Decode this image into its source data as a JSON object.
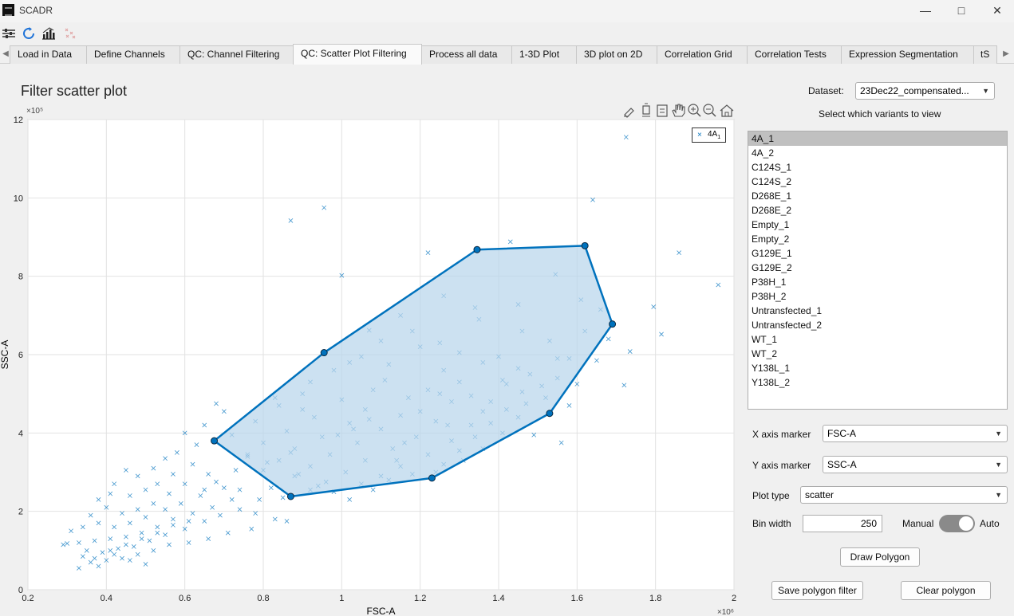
{
  "window": {
    "title": "SCADR",
    "minimize_icon": "minimize-icon",
    "maximize_icon": "maximize-icon",
    "close_icon": "close-icon"
  },
  "toolbar": {
    "icons": [
      "settings-sliders-icon",
      "refresh-icon",
      "bar-chart-icon",
      "scatter-icon"
    ]
  },
  "tabs": [
    {
      "label": "Load in Data"
    },
    {
      "label": "Define Channels"
    },
    {
      "label": "QC: Channel Filtering"
    },
    {
      "label": "QC: Scatter Plot Filtering",
      "active": true
    },
    {
      "label": "Process all data"
    },
    {
      "label": "1-3D Plot"
    },
    {
      "label": "3D plot on 2D"
    },
    {
      "label": "Correlation Grid"
    },
    {
      "label": "Correlation Tests"
    },
    {
      "label": "Expression Segmentation"
    },
    {
      "label": "tS"
    }
  ],
  "plot": {
    "title": "Filter scatter plot",
    "tool_icons": [
      "brush-icon",
      "data-tip-icon",
      "legend-icon",
      "pan-hand-icon",
      "zoom-in-icon",
      "zoom-out-icon",
      "home-icon"
    ]
  },
  "chart_data": {
    "type": "scatter",
    "xlabel": "FSC-A",
    "ylabel": "SSC-A",
    "x_exponent": "×10⁶",
    "y_exponent": "×10⁵",
    "xlim": [
      0.2,
      2.0
    ],
    "ylim": [
      0,
      12
    ],
    "xticks": [
      "0.2",
      "0.4",
      "0.6",
      "0.8",
      "1",
      "1.2",
      "1.4",
      "1.6",
      "1.8",
      "2"
    ],
    "yticks": [
      "0",
      "2",
      "4",
      "6",
      "8",
      "10",
      "12"
    ],
    "grid": true,
    "legend": {
      "position": "top-right",
      "label": "4A",
      "label_subscript": "1"
    },
    "marker_color": "#0072bd",
    "polygon": {
      "edge_color": "#0072bd",
      "fill_color": "#b8d6ec",
      "vertices": [
        [
          0.675,
          3.8
        ],
        [
          0.955,
          6.05
        ],
        [
          1.345,
          8.68
        ],
        [
          1.62,
          8.78
        ],
        [
          1.69,
          6.78
        ],
        [
          1.53,
          4.5
        ],
        [
          1.23,
          2.85
        ],
        [
          0.87,
          2.38
        ]
      ]
    },
    "series": [
      {
        "points": [
          [
            1.725,
            11.55
          ],
          [
            0.87,
            9.42
          ],
          [
            0.955,
            9.75
          ],
          [
            1.64,
            9.95
          ],
          [
            1.86,
            8.6
          ],
          [
            1.96,
            7.78
          ],
          [
            1.22,
            8.6
          ],
          [
            1.43,
            8.88
          ],
          [
            1.0,
            8.02
          ],
          [
            1.545,
            8.05
          ],
          [
            1.815,
            6.52
          ],
          [
            1.795,
            7.22
          ],
          [
            1.735,
            6.08
          ],
          [
            1.72,
            5.22
          ],
          [
            1.55,
            5.9
          ],
          [
            1.56,
            3.75
          ],
          [
            1.61,
            7.4
          ],
          [
            1.34,
            7.2
          ],
          [
            1.45,
            7.28
          ],
          [
            1.15,
            7.0
          ],
          [
            1.26,
            7.5
          ],
          [
            1.1,
            6.35
          ],
          [
            1.07,
            6.62
          ],
          [
            1.02,
            5.8
          ],
          [
            1.2,
            6.2
          ],
          [
            1.3,
            6.05
          ],
          [
            1.4,
            5.95
          ],
          [
            1.48,
            5.5
          ],
          [
            1.55,
            5.4
          ],
          [
            1.62,
            6.6
          ],
          [
            1.65,
            5.85
          ],
          [
            1.35,
            6.9
          ],
          [
            1.18,
            6.6
          ],
          [
            1.25,
            6.3
          ],
          [
            1.36,
            5.8
          ],
          [
            1.46,
            6.6
          ],
          [
            1.6,
            5.25
          ],
          [
            1.05,
            5.95
          ],
          [
            1.12,
            5.75
          ],
          [
            1.26,
            5.6
          ],
          [
            1.42,
            5.25
          ],
          [
            1.51,
            5.2
          ],
          [
            1.58,
            5.9
          ],
          [
            1.11,
            5.35
          ],
          [
            1.22,
            5.1
          ],
          [
            1.3,
            5.3
          ],
          [
            1.38,
            4.8
          ],
          [
            1.47,
            4.75
          ],
          [
            0.98,
            5.6
          ],
          [
            0.92,
            5.3
          ],
          [
            1.08,
            5.1
          ],
          [
            1.17,
            4.9
          ],
          [
            1.28,
            4.8
          ],
          [
            1.36,
            4.55
          ],
          [
            1.45,
            4.4
          ],
          [
            1.52,
            4.9
          ],
          [
            0.9,
            5.0
          ],
          [
            1.0,
            4.85
          ],
          [
            1.06,
            4.6
          ],
          [
            1.15,
            4.45
          ],
          [
            1.24,
            4.3
          ],
          [
            1.33,
            4.2
          ],
          [
            1.41,
            4.0
          ],
          [
            0.84,
            4.7
          ],
          [
            0.93,
            4.4
          ],
          [
            1.02,
            4.25
          ],
          [
            1.1,
            4.1
          ],
          [
            1.19,
            3.9
          ],
          [
            1.28,
            3.8
          ],
          [
            1.36,
            3.6
          ],
          [
            0.78,
            4.3
          ],
          [
            0.86,
            4.05
          ],
          [
            0.95,
            3.9
          ],
          [
            1.04,
            3.75
          ],
          [
            1.13,
            3.6
          ],
          [
            1.22,
            3.45
          ],
          [
            1.31,
            3.3
          ],
          [
            0.72,
            3.95
          ],
          [
            0.8,
            3.75
          ],
          [
            0.88,
            3.6
          ],
          [
            0.97,
            3.45
          ],
          [
            1.06,
            3.3
          ],
          [
            1.15,
            3.15
          ],
          [
            1.24,
            3.0
          ],
          [
            0.76,
            3.45
          ],
          [
            0.84,
            3.3
          ],
          [
            0.92,
            3.15
          ],
          [
            1.01,
            3.0
          ],
          [
            1.1,
            2.9
          ],
          [
            0.8,
            3.05
          ],
          [
            0.88,
            2.9
          ],
          [
            0.96,
            2.75
          ],
          [
            1.05,
            2.7
          ],
          [
            0.92,
            2.55
          ],
          [
            0.87,
            3.5
          ],
          [
            0.99,
            3.95
          ],
          [
            1.14,
            3.3
          ],
          [
            1.2,
            4.55
          ],
          [
            1.33,
            4.95
          ],
          [
            1.41,
            5.35
          ],
          [
            1.58,
            4.7
          ],
          [
            1.49,
            3.95
          ],
          [
            1.27,
            4.2
          ],
          [
            0.83,
            4.9
          ],
          [
            0.9,
            4.6
          ],
          [
            1.03,
            4.1
          ],
          [
            1.16,
            3.75
          ],
          [
            1.25,
            5.0
          ],
          [
            1.07,
            4.35
          ],
          [
            1.45,
            5.65
          ],
          [
            1.53,
            6.35
          ],
          [
            1.68,
            6.4
          ],
          [
            1.66,
            7.15
          ],
          [
            0.68,
            4.75
          ],
          [
            0.7,
            4.55
          ],
          [
            0.65,
            4.2
          ],
          [
            0.6,
            4.0
          ],
          [
            0.58,
            3.5
          ],
          [
            0.63,
            3.7
          ],
          [
            0.55,
            3.35
          ],
          [
            0.52,
            3.1
          ],
          [
            0.48,
            2.9
          ],
          [
            0.45,
            3.05
          ],
          [
            0.42,
            2.7
          ],
          [
            0.62,
            3.2
          ],
          [
            0.57,
            2.95
          ],
          [
            0.53,
            2.7
          ],
          [
            0.5,
            2.55
          ],
          [
            0.46,
            2.4
          ],
          [
            0.41,
            2.45
          ],
          [
            0.38,
            2.3
          ],
          [
            0.66,
            2.95
          ],
          [
            0.6,
            2.7
          ],
          [
            0.56,
            2.45
          ],
          [
            0.52,
            2.2
          ],
          [
            0.48,
            2.05
          ],
          [
            0.44,
            1.95
          ],
          [
            0.4,
            2.1
          ],
          [
            0.36,
            1.9
          ],
          [
            0.7,
            2.6
          ],
          [
            0.64,
            2.4
          ],
          [
            0.59,
            2.2
          ],
          [
            0.55,
            2.05
          ],
          [
            0.5,
            1.85
          ],
          [
            0.46,
            1.7
          ],
          [
            0.42,
            1.6
          ],
          [
            0.38,
            1.7
          ],
          [
            0.34,
            1.6
          ],
          [
            0.31,
            1.5
          ],
          [
            0.72,
            2.3
          ],
          [
            0.67,
            2.1
          ],
          [
            0.62,
            1.95
          ],
          [
            0.57,
            1.8
          ],
          [
            0.53,
            1.6
          ],
          [
            0.49,
            1.45
          ],
          [
            0.45,
            1.35
          ],
          [
            0.41,
            1.3
          ],
          [
            0.37,
            1.25
          ],
          [
            0.33,
            1.2
          ],
          [
            0.29,
            1.15
          ],
          [
            0.3,
            1.18
          ],
          [
            0.35,
            1.0
          ],
          [
            0.39,
            0.95
          ],
          [
            0.43,
            1.05
          ],
          [
            0.47,
            1.1
          ],
          [
            0.51,
            1.25
          ],
          [
            0.55,
            1.4
          ],
          [
            0.6,
            1.55
          ],
          [
            0.65,
            1.75
          ],
          [
            0.69,
            1.9
          ],
          [
            0.74,
            2.05
          ],
          [
            0.78,
            1.95
          ],
          [
            0.83,
            1.8
          ],
          [
            0.86,
            1.75
          ],
          [
            0.77,
            1.55
          ],
          [
            0.71,
            1.45
          ],
          [
            0.66,
            1.3
          ],
          [
            0.61,
            1.2
          ],
          [
            0.56,
            1.15
          ],
          [
            0.52,
            1.0
          ],
          [
            0.48,
            0.9
          ],
          [
            0.44,
            0.8
          ],
          [
            0.4,
            0.75
          ],
          [
            0.36,
            0.7
          ],
          [
            0.34,
            0.85
          ],
          [
            0.38,
            0.6
          ],
          [
            0.42,
            0.9
          ],
          [
            0.46,
            0.75
          ],
          [
            0.5,
            0.65
          ],
          [
            0.33,
            0.55
          ],
          [
            0.37,
            0.8
          ],
          [
            0.41,
            1.0
          ],
          [
            0.45,
            1.15
          ],
          [
            0.49,
            1.3
          ],
          [
            0.53,
            1.45
          ],
          [
            0.57,
            1.65
          ],
          [
            0.61,
            1.75
          ],
          [
            0.65,
            2.55
          ],
          [
            0.68,
            2.75
          ],
          [
            0.73,
            3.05
          ],
          [
            0.76,
            3.4
          ],
          [
            0.74,
            2.55
          ],
          [
            0.79,
            2.3
          ],
          [
            0.82,
            2.6
          ],
          [
            0.85,
            2.35
          ],
          [
            0.81,
            3.25
          ],
          [
            0.89,
            2.95
          ],
          [
            0.94,
            2.65
          ],
          [
            0.98,
            2.5
          ],
          [
            1.02,
            2.3
          ],
          [
            1.08,
            2.55
          ],
          [
            1.12,
            2.8
          ],
          [
            1.18,
            2.95
          ],
          [
            1.26,
            3.2
          ],
          [
            1.3,
            3.55
          ],
          [
            1.34,
            3.9
          ],
          [
            1.38,
            4.25
          ],
          [
            1.42,
            4.6
          ],
          [
            1.46,
            5.05
          ]
        ]
      }
    ]
  },
  "panel": {
    "dataset_label": "Dataset:",
    "dataset_value": "23Dec22_compensated...",
    "variants_label": "Select which variants to view",
    "variants": [
      "4A_1",
      "4A_2",
      "C124S_1",
      "C124S_2",
      "D268E_1",
      "D268E_2",
      "Empty_1",
      "Empty_2",
      "G129E_1",
      "G129E_2",
      "P38H_1",
      "P38H_2",
      "Untransfected_1",
      "Untransfected_2",
      "WT_1",
      "WT_2",
      "Y138L_1",
      "Y138L_2"
    ],
    "x_marker_label": "X axis marker",
    "x_marker_value": "FSC-A",
    "y_marker_label": "Y axis marker",
    "y_marker_value": "SSC-A",
    "plot_type_label": "Plot type",
    "plot_type_value": "scatter",
    "bin_width_label": "Bin width",
    "bin_width_value": "250",
    "manual_label": "Manual",
    "auto_label": "Auto",
    "draw_polygon": "Draw Polygon",
    "save_polygon": "Save polygon filter",
    "clear_polygon": "Clear polygon"
  }
}
